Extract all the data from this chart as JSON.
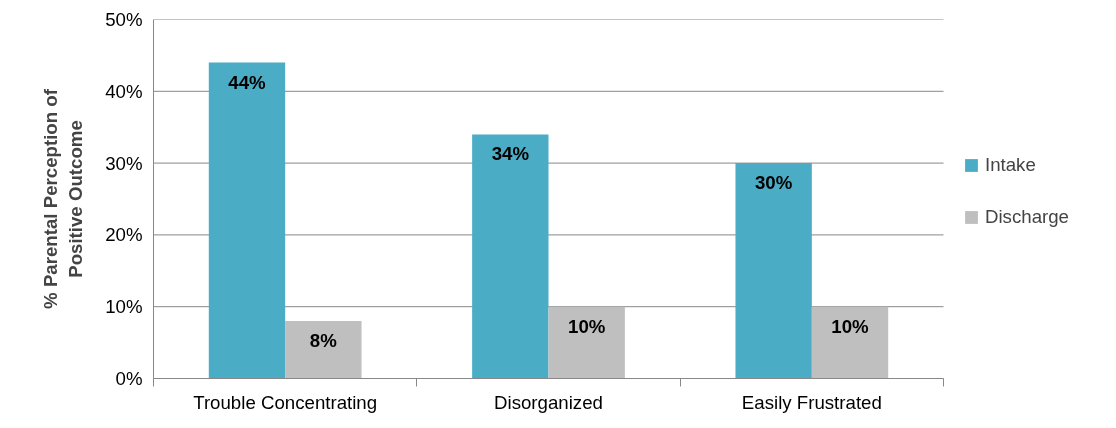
{
  "chart_data": {
    "type": "bar",
    "ylabel": "% Parental Perception of\nPositive Outcome",
    "categories": [
      "Trouble Concentrating",
      "Disorganized",
      "Easily Frustrated"
    ],
    "series": [
      {
        "name": "Intake",
        "color": "#4bacc6",
        "values": [
          44,
          34,
          30
        ],
        "value_labels": [
          "44%",
          "34%",
          "30%"
        ]
      },
      {
        "name": "Discharge",
        "color": "#bfbfbf",
        "values": [
          8,
          10,
          10
        ],
        "value_labels": [
          "8%",
          "10%",
          "10%"
        ]
      }
    ],
    "ylim": [
      0,
      50
    ],
    "yticks": [
      {
        "value": 0,
        "label": "0%"
      },
      {
        "value": 10,
        "label": "10%"
      },
      {
        "value": 20,
        "label": "20%"
      },
      {
        "value": 30,
        "label": "30%"
      },
      {
        "value": 40,
        "label": "40%"
      },
      {
        "value": 50,
        "label": "50%"
      }
    ],
    "grid": "y",
    "legend": "right"
  }
}
